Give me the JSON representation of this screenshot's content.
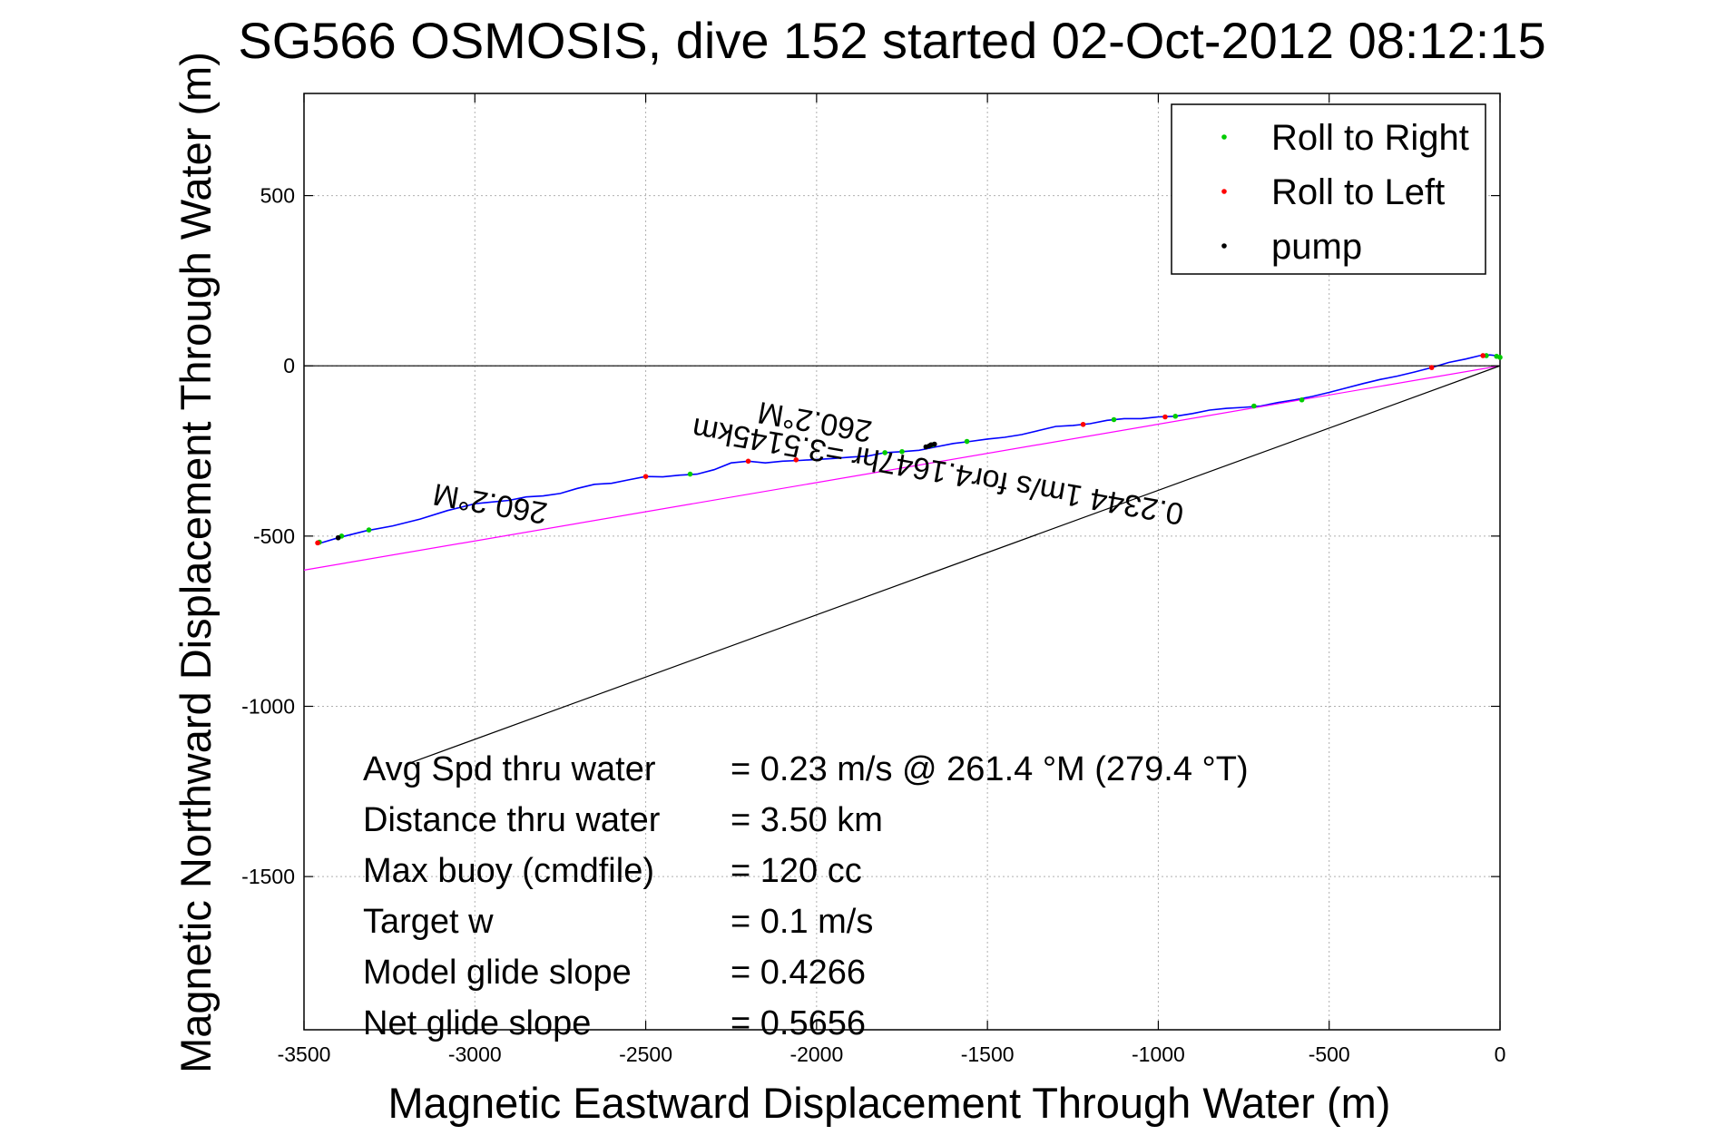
{
  "chart_data": {
    "type": "line",
    "title": "SG566 OSMOSIS, dive 152 started 02-Oct-2012 08:12:15",
    "xlabel": "Magnetic Eastward Displacement Through Water (m)",
    "ylabel": "Magnetic Northward Displacement Through Water (m)",
    "xlim": [
      -3500,
      0
    ],
    "ylim": [
      -1950,
      800
    ],
    "xticks": [
      -3500,
      -3000,
      -2500,
      -2000,
      -1500,
      -1000,
      -500,
      0
    ],
    "yticks": [
      500,
      0,
      -500,
      -1000,
      -1500
    ],
    "xtick_labels": [
      "-3500",
      "-3000",
      "-2500",
      "-2000",
      "-1500",
      "-1000",
      "-500",
      "0"
    ],
    "ytick_labels": [
      "500",
      "0",
      "-500",
      "-1000",
      "-1500"
    ],
    "grid": true,
    "legend_position": "top-right",
    "legend": [
      {
        "label": "Roll to Right",
        "color": "#00cc00"
      },
      {
        "label": "Roll to Left",
        "color": "#ff0000"
      },
      {
        "label": "pump",
        "color": "#000000"
      }
    ],
    "colors": {
      "track": "#0000ff",
      "mean_line": "#ff00ff",
      "reference_line": "#000000",
      "roll_right": "#00cc00",
      "roll_left": "#ff0000",
      "pump": "#000000"
    },
    "series": [
      {
        "kind": "track",
        "x": [
          -3450,
          -3400,
          -3320,
          -3240,
          -3160,
          -3080,
          -3000,
          -2950,
          -2900,
          -2850,
          -2800,
          -2750,
          -2700,
          -2650,
          -2600,
          -2550,
          -2500,
          -2450,
          -2400,
          -2350,
          -2300,
          -2250,
          -2200,
          -2150,
          -2100,
          -2050,
          -2000,
          -1950,
          -1900,
          -1850,
          -1800,
          -1750,
          -1700,
          -1650,
          -1600,
          -1550,
          -1500,
          -1450,
          -1400,
          -1350,
          -1300,
          -1250,
          -1200,
          -1150,
          -1100,
          -1050,
          -1000,
          -950,
          -900,
          -850,
          -800,
          -750,
          -700,
          -650,
          -600,
          -550,
          -500,
          -450,
          -400,
          -350,
          -300,
          -250,
          -200,
          -150,
          -100,
          -60,
          -30,
          -10,
          0
        ],
        "y": [
          -520,
          -505,
          -485,
          -470,
          -450,
          -425,
          -405,
          -400,
          -395,
          -385,
          -382,
          -375,
          -360,
          -348,
          -345,
          -335,
          -325,
          -326,
          -321,
          -318,
          -305,
          -285,
          -280,
          -285,
          -280,
          -278,
          -275,
          -272,
          -268,
          -265,
          -255,
          -252,
          -248,
          -238,
          -228,
          -222,
          -215,
          -210,
          -202,
          -190,
          -178,
          -175,
          -170,
          -160,
          -155,
          -155,
          -150,
          -148,
          -140,
          -130,
          -125,
          -122,
          -118,
          -108,
          -100,
          -90,
          -78,
          -65,
          -52,
          -40,
          -30,
          -18,
          -5,
          10,
          20,
          30,
          32,
          30,
          25
        ]
      },
      {
        "kind": "mean_line",
        "x": [
          -3500,
          0
        ],
        "y": [
          -600,
          0
        ]
      },
      {
        "kind": "reference_line",
        "x": [
          -3200,
          0
        ],
        "y": [
          -1170,
          0
        ]
      },
      {
        "kind": "zero_line",
        "x": [
          -3500,
          0
        ],
        "y": [
          0,
          0
        ]
      }
    ],
    "markers": {
      "roll_right": {
        "x": [
          -3455,
          -3390,
          -3310,
          -2370,
          -1800,
          -1750,
          -1660,
          -1560,
          -1130,
          -950,
          -720,
          -580,
          -40,
          -10,
          0
        ],
        "y": [
          -518,
          -500,
          -482,
          -318,
          -255,
          -252,
          -232,
          -222,
          -158,
          -148,
          -118,
          -100,
          30,
          28,
          25
        ]
      },
      "roll_left": {
        "x": [
          -3460,
          -2500,
          -2200,
          -2060,
          -1220,
          -980,
          -200,
          -50
        ],
        "y": [
          -520,
          -325,
          -280,
          -276,
          -172,
          -150,
          -5,
          30
        ]
      },
      "pump": {
        "x": [
          -3400,
          -1680,
          -1670,
          -1665,
          -1655
        ],
        "y": [
          -505,
          -238,
          -235,
          -232,
          -230
        ]
      }
    },
    "annotations": [
      {
        "text": "260.2°M",
        "x": -2000,
        "y": -135,
        "rotation": 190
      },
      {
        "text": "260.2°M",
        "x": -2950,
        "y": -375,
        "rotation": 190
      },
      {
        "text": "0.2344 1m/s for4.1647hr =3.5145km",
        "x": -1640,
        "y": -280,
        "rotation": 190
      }
    ],
    "stats": [
      {
        "label": "Avg Spd thru water",
        "value": "=  0.23 m/s @ 261.4 °M (279.4 °T)"
      },
      {
        "label": "Distance thru water",
        "value": "=  3.50 km"
      },
      {
        "label": "Max buoy (cmdfile)",
        "value": "= 120 cc"
      },
      {
        "label": "Target w",
        "value": "= 0.1 m/s"
      },
      {
        "label": "Model glide slope",
        "value": "= 0.4266"
      },
      {
        "label": "Net glide slope",
        "value": "= 0.5656"
      }
    ]
  }
}
